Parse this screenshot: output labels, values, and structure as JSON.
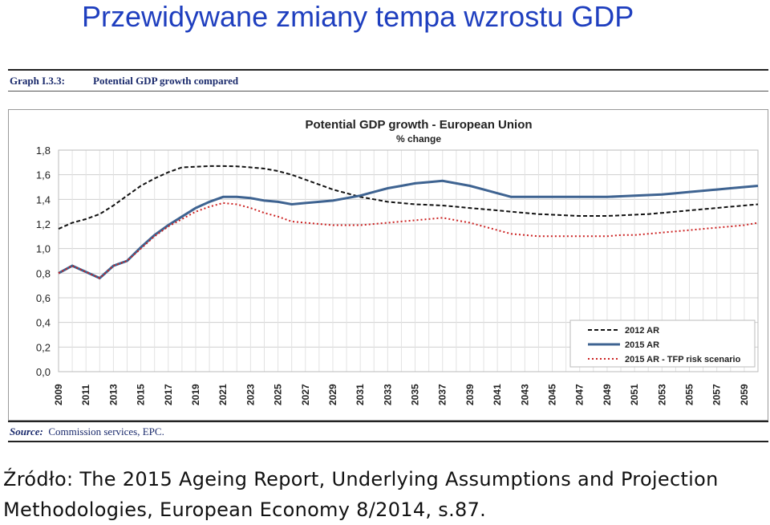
{
  "slide_title": "Przewidywane zmiany tempa wzrostu GDP",
  "graph_label": "Graph I.3.3:",
  "graph_caption": "Potential GDP growth compared",
  "source": {
    "label": "Source:",
    "text": "Commission services, EPC."
  },
  "footnote": "Źródło: The 2015 Ageing Report, Underlying Assumptions and Projection Methodologies, European Economy 8/2014,  s.87.",
  "chart_data": {
    "type": "line",
    "title": "Potential GDP growth - European Union",
    "subtitle": "% change",
    "xlabel": "",
    "ylabel": "",
    "ylim": [
      0.0,
      1.8
    ],
    "yticks": [
      "0,0",
      "0,2",
      "0,4",
      "0,6",
      "0,8",
      "1,0",
      "1,2",
      "1,4",
      "1,6",
      "1,8"
    ],
    "grid": true,
    "legend_position": "bottom-right",
    "x": [
      2009,
      2010,
      2011,
      2012,
      2013,
      2014,
      2015,
      2016,
      2017,
      2018,
      2019,
      2020,
      2021,
      2022,
      2023,
      2024,
      2025,
      2026,
      2027,
      2028,
      2029,
      2030,
      2031,
      2032,
      2033,
      2034,
      2035,
      2036,
      2037,
      2038,
      2039,
      2040,
      2041,
      2042,
      2043,
      2044,
      2045,
      2046,
      2047,
      2048,
      2049,
      2050,
      2051,
      2052,
      2053,
      2054,
      2055,
      2056,
      2057,
      2058,
      2059,
      2060
    ],
    "xtick_labels": [
      "2009",
      "2011",
      "2013",
      "2015",
      "2017",
      "2019",
      "2021",
      "2023",
      "2025",
      "2027",
      "2029",
      "2031",
      "2033",
      "2035",
      "2037",
      "2039",
      "2041",
      "2043",
      "2045",
      "2047",
      "2049",
      "2051",
      "2053",
      "2055",
      "2057",
      "2059"
    ],
    "series": [
      {
        "name": "2012 AR",
        "color": "#111111",
        "style": "dashed",
        "values": [
          1.16,
          1.21,
          1.24,
          1.28,
          1.35,
          1.43,
          1.51,
          1.57,
          1.62,
          1.66,
          1.665,
          1.67,
          1.67,
          1.668,
          1.66,
          1.65,
          1.63,
          1.6,
          1.56,
          1.52,
          1.48,
          1.45,
          1.42,
          1.4,
          1.38,
          1.37,
          1.36,
          1.355,
          1.35,
          1.34,
          1.33,
          1.32,
          1.31,
          1.3,
          1.29,
          1.28,
          1.275,
          1.27,
          1.265,
          1.265,
          1.265,
          1.27,
          1.275,
          1.28,
          1.29,
          1.3,
          1.31,
          1.32,
          1.33,
          1.34,
          1.35,
          1.36
        ]
      },
      {
        "name": "2015 AR",
        "color": "#3e6391",
        "style": "solid",
        "values": [
          0.8,
          0.86,
          0.81,
          0.76,
          0.86,
          0.9,
          1.01,
          1.11,
          1.19,
          1.26,
          1.33,
          1.38,
          1.42,
          1.42,
          1.41,
          1.39,
          1.38,
          1.36,
          1.37,
          1.38,
          1.39,
          1.41,
          1.43,
          1.46,
          1.49,
          1.51,
          1.53,
          1.54,
          1.55,
          1.53,
          1.51,
          1.48,
          1.45,
          1.42,
          1.42,
          1.42,
          1.42,
          1.42,
          1.42,
          1.42,
          1.42,
          1.425,
          1.43,
          1.435,
          1.44,
          1.45,
          1.46,
          1.47,
          1.48,
          1.49,
          1.5,
          1.51
        ]
      },
      {
        "name": "2015 AR - TFP risk scenario",
        "color": "#cc2222",
        "style": "dotted",
        "values": [
          0.8,
          0.86,
          0.81,
          0.76,
          0.86,
          0.9,
          1.0,
          1.1,
          1.18,
          1.24,
          1.3,
          1.34,
          1.37,
          1.36,
          1.33,
          1.29,
          1.26,
          1.22,
          1.21,
          1.2,
          1.19,
          1.19,
          1.19,
          1.2,
          1.21,
          1.22,
          1.23,
          1.24,
          1.25,
          1.23,
          1.21,
          1.18,
          1.15,
          1.12,
          1.11,
          1.1,
          1.1,
          1.1,
          1.1,
          1.1,
          1.1,
          1.11,
          1.11,
          1.12,
          1.13,
          1.14,
          1.15,
          1.16,
          1.17,
          1.18,
          1.19,
          1.21
        ]
      }
    ]
  }
}
